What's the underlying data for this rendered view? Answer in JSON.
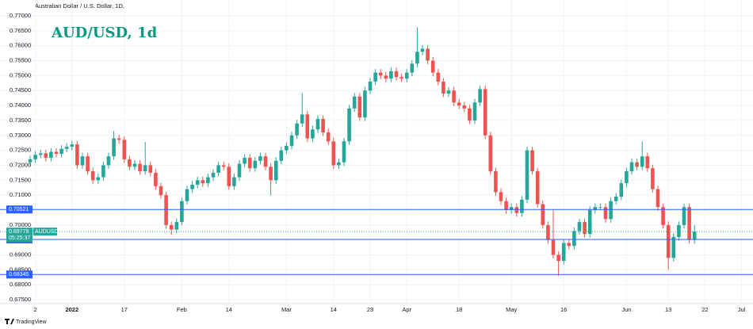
{
  "chart_data": {
    "type": "candlestick",
    "header": "Australian Dollar / U.S. Dollar, 1D,",
    "title": "AUD/USD, 1d",
    "watermark": "TradingView",
    "up_color": "#26a69a",
    "down_color": "#ef5350",
    "grid": true,
    "categories": [
      null,
      "2",
      null,
      null,
      null,
      null,
      null,
      null,
      "2022",
      null,
      null,
      null,
      null,
      null,
      null,
      null,
      null,
      null,
      "17",
      null,
      null,
      null,
      null,
      null,
      null,
      null,
      null,
      null,
      null,
      "Feb",
      null,
      null,
      null,
      null,
      null,
      null,
      null,
      null,
      "14",
      null,
      null,
      null,
      null,
      null,
      null,
      null,
      null,
      null,
      null,
      "Mar",
      null,
      null,
      null,
      null,
      null,
      null,
      null,
      null,
      "14",
      null,
      null,
      null,
      null,
      null,
      null,
      "23",
      null,
      null,
      null,
      null,
      null,
      null,
      "Apr",
      null,
      null,
      null,
      null,
      null,
      null,
      null,
      null,
      null,
      "18",
      null,
      null,
      null,
      null,
      null,
      null,
      null,
      null,
      null,
      "May",
      null,
      null,
      null,
      null,
      null,
      null,
      null,
      null,
      null,
      "16",
      null,
      null,
      null,
      null,
      null,
      null,
      null,
      null,
      null,
      null,
      null,
      "Jun",
      null,
      null,
      null,
      null,
      null,
      null,
      null,
      "13",
      null,
      null,
      null,
      null,
      null,
      null,
      "22",
      null,
      null,
      null,
      null,
      null,
      null,
      "Jul"
    ],
    "open": [
      0.721,
      0.722,
      0.7235,
      0.724,
      0.7225,
      0.7245,
      0.7238,
      0.7255,
      0.7262,
      0.727,
      0.72,
      0.723,
      0.718,
      0.715,
      0.716,
      0.72,
      0.723,
      0.729,
      0.7285,
      0.722,
      0.7195,
      0.7205,
      0.718,
      0.72,
      0.7175,
      0.713,
      0.71,
      0.7,
      0.6985,
      0.701,
      0.708,
      0.712,
      0.7135,
      0.715,
      0.714,
      0.716,
      0.7175,
      0.72,
      0.7195,
      0.713,
      0.716,
      0.7205,
      0.7225,
      0.719,
      0.7215,
      0.723,
      0.7195,
      0.715,
      0.7215,
      0.725,
      0.7265,
      0.73,
      0.734,
      0.737,
      0.729,
      0.732,
      0.7355,
      0.731,
      0.728,
      0.72,
      0.721,
      0.728,
      0.739,
      0.743,
      0.736,
      0.745,
      0.748,
      0.751,
      0.75,
      0.749,
      0.7515,
      0.7495,
      0.749,
      0.751,
      0.754,
      0.758,
      0.759,
      0.755,
      0.751,
      0.748,
      0.744,
      0.745,
      0.741,
      0.74,
      0.739,
      0.735,
      0.741,
      0.7455,
      0.73,
      0.718,
      0.711,
      0.708,
      0.705,
      0.706,
      0.704,
      0.7085,
      0.725,
      0.718,
      0.707,
      0.7,
      0.695,
      0.69,
      0.688,
      0.694,
      0.693,
      0.698,
      0.701,
      0.697,
      0.705,
      0.706,
      0.706,
      0.702,
      0.708,
      0.7095,
      0.714,
      0.718,
      0.721,
      0.7195,
      0.723,
      0.719,
      0.712,
      0.706,
      0.7,
      0.689,
      0.696,
      0.7,
      0.706,
      0.695,
      null,
      null,
      null,
      null,
      null,
      null,
      null,
      null,
      null
    ],
    "high": [
      0.7232,
      0.7247,
      0.7252,
      0.7252,
      0.7257,
      0.7257,
      0.7267,
      0.7274,
      0.7282,
      0.7282,
      0.7242,
      0.7242,
      0.7192,
      0.7172,
      0.7212,
      0.7242,
      0.7315,
      0.7302,
      0.7297,
      0.7232,
      0.7217,
      0.7217,
      0.7278,
      0.7212,
      0.7187,
      0.7142,
      0.7112,
      0.7012,
      0.7022,
      0.7092,
      0.7132,
      0.7147,
      0.7162,
      0.7162,
      0.7172,
      0.7187,
      0.7212,
      0.7212,
      0.7207,
      0.7172,
      0.7217,
      0.7237,
      0.7237,
      0.7227,
      0.7242,
      0.7242,
      0.7207,
      0.7227,
      0.7262,
      0.7277,
      0.7312,
      0.7352,
      0.7442,
      0.7382,
      0.7332,
      0.7367,
      0.7367,
      0.7322,
      0.7292,
      0.7222,
      0.7292,
      0.7402,
      0.7442,
      0.7442,
      0.7462,
      0.7492,
      0.7522,
      0.7522,
      0.7512,
      0.7527,
      0.7527,
      0.7507,
      0.7522,
      0.7552,
      0.7662,
      0.7602,
      0.7602,
      0.7562,
      0.7522,
      0.7492,
      0.7462,
      0.7462,
      0.7422,
      0.7412,
      0.7402,
      0.7422,
      0.7467,
      0.7467,
      0.7312,
      0.7192,
      0.7122,
      0.7092,
      0.7072,
      0.7072,
      0.7097,
      0.7262,
      0.7262,
      0.7192,
      0.7082,
      0.7012,
      0.705,
      0.6912,
      0.6952,
      0.6952,
      0.6992,
      0.7022,
      0.7022,
      0.7062,
      0.7072,
      0.7072,
      0.7072,
      0.7092,
      0.7107,
      0.7152,
      0.7192,
      0.7222,
      0.7222,
      0.728,
      0.7242,
      0.7202,
      0.7132,
      0.7072,
      0.7012,
      0.6972,
      0.7012,
      0.7072,
      0.7072,
      0.7,
      null,
      null,
      null,
      null,
      null,
      null,
      null,
      null,
      null
    ],
    "low": [
      0.7198,
      0.7208,
      0.7223,
      0.7213,
      0.7213,
      0.7226,
      0.7226,
      0.7243,
      0.725,
      0.7188,
      0.7188,
      0.7168,
      0.7138,
      0.7138,
      0.7148,
      0.7188,
      0.7218,
      0.7273,
      0.7208,
      0.7183,
      0.7183,
      0.7168,
      0.7168,
      0.7163,
      0.7118,
      0.7088,
      0.6988,
      0.6968,
      0.6973,
      0.6998,
      0.7068,
      0.7108,
      0.7123,
      0.7128,
      0.7128,
      0.7148,
      0.7163,
      0.7183,
      0.7118,
      0.7118,
      0.7148,
      0.7193,
      0.7178,
      0.7178,
      0.7203,
      0.7183,
      0.71,
      0.7138,
      0.7203,
      0.7238,
      0.7253,
      0.7288,
      0.7328,
      0.7278,
      0.7278,
      0.7308,
      0.7298,
      0.7268,
      0.7188,
      0.7188,
      0.7198,
      0.7268,
      0.7378,
      0.7348,
      0.7348,
      0.7438,
      0.7468,
      0.7488,
      0.7478,
      0.7478,
      0.7483,
      0.7478,
      0.7478,
      0.7498,
      0.7528,
      0.7568,
      0.7538,
      0.7498,
      0.7468,
      0.7428,
      0.7428,
      0.7398,
      0.7388,
      0.7378,
      0.7338,
      0.7338,
      0.7398,
      0.7288,
      0.7168,
      0.7098,
      0.7068,
      0.7038,
      0.7038,
      0.7028,
      0.7028,
      0.7073,
      0.7168,
      0.7058,
      0.6988,
      0.6938,
      0.6888,
      0.683,
      0.6868,
      0.6918,
      0.6918,
      0.6968,
      0.6958,
      0.6958,
      0.7038,
      0.7048,
      0.7008,
      0.7008,
      0.7068,
      0.7083,
      0.7128,
      0.7168,
      0.7183,
      0.7183,
      0.7178,
      0.7108,
      0.7048,
      0.6988,
      0.685,
      0.6878,
      0.6948,
      0.6988,
      0.6938,
      0.6938,
      null,
      null,
      null,
      null,
      null,
      null,
      null,
      null,
      null
    ],
    "close": [
      0.722,
      0.7235,
      0.724,
      0.7225,
      0.7245,
      0.7238,
      0.7255,
      0.7262,
      0.727,
      0.72,
      0.723,
      0.718,
      0.715,
      0.716,
      0.72,
      0.723,
      0.729,
      0.7285,
      0.722,
      0.7195,
      0.7205,
      0.718,
      0.72,
      0.7175,
      0.713,
      0.71,
      0.7,
      0.6985,
      0.701,
      0.708,
      0.712,
      0.7135,
      0.715,
      0.714,
      0.716,
      0.7175,
      0.72,
      0.7195,
      0.713,
      0.716,
      0.7205,
      0.7225,
      0.719,
      0.7215,
      0.723,
      0.7195,
      0.715,
      0.7215,
      0.725,
      0.7265,
      0.73,
      0.734,
      0.737,
      0.729,
      0.732,
      0.7355,
      0.731,
      0.728,
      0.72,
      0.721,
      0.728,
      0.739,
      0.743,
      0.736,
      0.745,
      0.748,
      0.751,
      0.75,
      0.749,
      0.7515,
      0.7495,
      0.749,
      0.751,
      0.754,
      0.758,
      0.759,
      0.755,
      0.751,
      0.748,
      0.744,
      0.745,
      0.741,
      0.74,
      0.739,
      0.735,
      0.741,
      0.7455,
      0.73,
      0.718,
      0.711,
      0.708,
      0.705,
      0.706,
      0.704,
      0.7085,
      0.725,
      0.718,
      0.707,
      0.7,
      0.695,
      0.69,
      0.688,
      0.694,
      0.693,
      0.698,
      0.701,
      0.697,
      0.705,
      0.706,
      0.706,
      0.702,
      0.708,
      0.7095,
      0.714,
      0.718,
      0.721,
      0.7195,
      0.723,
      0.719,
      0.712,
      0.706,
      0.7,
      0.689,
      0.696,
      0.7,
      0.706,
      0.695,
      0.6978,
      null,
      null,
      null,
      null,
      null,
      null,
      null,
      null,
      null
    ],
    "ylim": [
      0.6737,
      0.7753
    ],
    "yticks": [
      {
        "value": 0.77,
        "label": "0.77000"
      },
      {
        "value": 0.765,
        "label": "0.76500"
      },
      {
        "value": 0.76,
        "label": "0.76000"
      },
      {
        "value": 0.755,
        "label": "0.75500"
      },
      {
        "value": 0.75,
        "label": "0.75000"
      },
      {
        "value": 0.745,
        "label": "0.74500"
      },
      {
        "value": 0.74,
        "label": "0.74000"
      },
      {
        "value": 0.735,
        "label": "0.73500"
      },
      {
        "value": 0.73,
        "label": "0.73000"
      },
      {
        "value": 0.725,
        "label": "0.72500"
      },
      {
        "value": 0.72,
        "label": "0.72000"
      },
      {
        "value": 0.715,
        "label": "0.71500"
      },
      {
        "value": 0.71,
        "label": "0.71000"
      },
      {
        "value": 0.705,
        "label": "0.70500"
      },
      {
        "value": 0.7,
        "label": "0.70000"
      },
      {
        "value": 0.695,
        "label": "0.69500"
      },
      {
        "value": 0.69,
        "label": "0.69000"
      },
      {
        "value": 0.685,
        "label": "0.68500"
      },
      {
        "value": 0.68,
        "label": "0.68000"
      },
      {
        "value": 0.675,
        "label": "0.67500"
      }
    ],
    "price_lines": [
      {
        "value": 0.70521,
        "label": "0.70521",
        "color": "#2962ff"
      },
      {
        "value": 0.6952,
        "label": "0.69520",
        "color": "#2962ff"
      },
      {
        "value": 0.68345,
        "label": "0.68345",
        "color": "#2962ff"
      }
    ],
    "last_price": {
      "value": 0.69779,
      "label": "0.69779",
      "countdown": "05:25:37",
      "symbol": "AUDUSD",
      "color": "#26a69a"
    }
  }
}
